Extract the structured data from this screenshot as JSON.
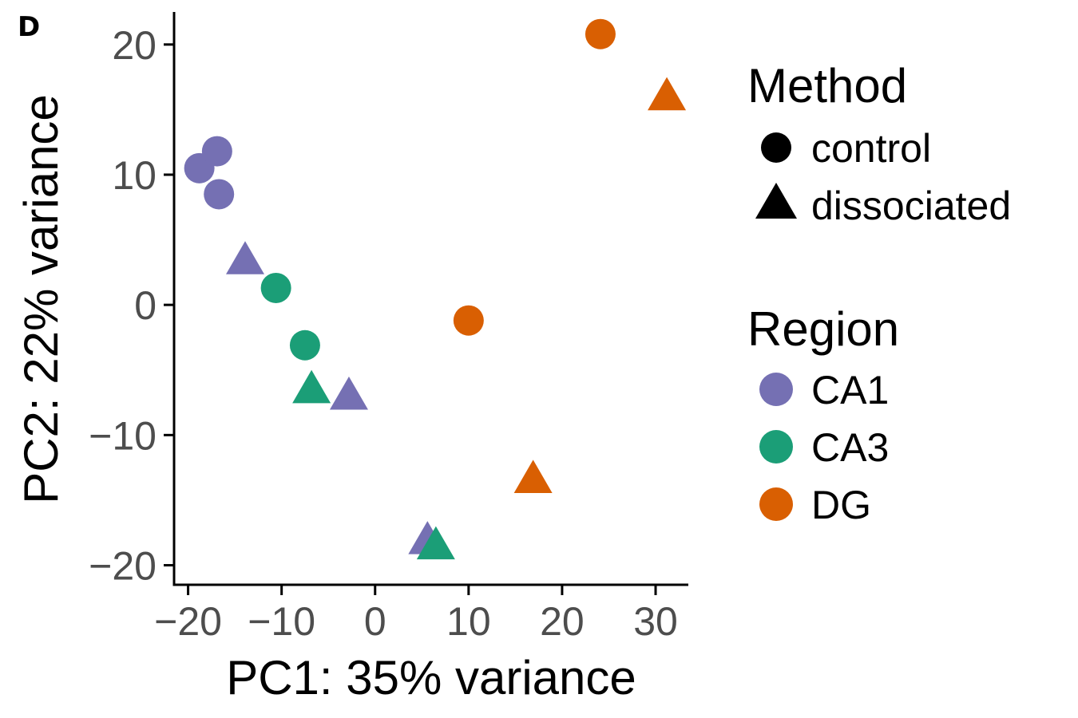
{
  "panel_label": "D",
  "chart_data": {
    "type": "scatter",
    "xlabel": "PC1: 35% variance",
    "ylabel": "PC2: 22% variance",
    "xlim": [
      -21.5,
      33.5
    ],
    "ylim": [
      -21.5,
      22.5
    ],
    "xticks": [
      -20,
      -10,
      0,
      10,
      20,
      30
    ],
    "yticks": [
      -20,
      -10,
      0,
      10,
      20
    ],
    "xtick_labels": [
      "−20",
      "−10",
      "0",
      "10",
      "20",
      "30"
    ],
    "ytick_labels": [
      "−20",
      "−10",
      "0",
      "10",
      "20"
    ],
    "grid": false,
    "legend": {
      "placement": "right",
      "shape_title": "Method",
      "shape_items": [
        {
          "label": "control",
          "shape": "circle"
        },
        {
          "label": "dissociated",
          "shape": "triangle"
        }
      ],
      "color_title": "Region",
      "color_items": [
        {
          "label": "CA1",
          "color": "#7570b3"
        },
        {
          "label": "CA3",
          "color": "#1b9e77"
        },
        {
          "label": "DG",
          "color": "#d95f02"
        }
      ]
    },
    "points": [
      {
        "x": -18.8,
        "y": 10.5,
        "region": "CA1",
        "method": "control"
      },
      {
        "x": -16.9,
        "y": 11.8,
        "region": "CA1",
        "method": "control"
      },
      {
        "x": -16.7,
        "y": 8.5,
        "region": "CA1",
        "method": "control"
      },
      {
        "x": -13.9,
        "y": 3.2,
        "region": "CA1",
        "method": "dissociated"
      },
      {
        "x": -2.8,
        "y": -7.2,
        "region": "CA1",
        "method": "dissociated"
      },
      {
        "x": 5.6,
        "y": -18.3,
        "region": "CA1",
        "method": "dissociated"
      },
      {
        "x": -10.6,
        "y": 1.3,
        "region": "CA3",
        "method": "control"
      },
      {
        "x": -7.5,
        "y": -3.1,
        "region": "CA3",
        "method": "control"
      },
      {
        "x": -6.8,
        "y": -6.7,
        "region": "CA3",
        "method": "dissociated"
      },
      {
        "x": 6.5,
        "y": -18.7,
        "region": "CA3",
        "method": "dissociated"
      },
      {
        "x": 24.1,
        "y": 20.8,
        "region": "DG",
        "method": "control"
      },
      {
        "x": 10.0,
        "y": -1.2,
        "region": "DG",
        "method": "control"
      },
      {
        "x": 31.2,
        "y": 15.8,
        "region": "DG",
        "method": "dissociated"
      },
      {
        "x": 16.9,
        "y": -13.6,
        "region": "DG",
        "method": "dissociated"
      }
    ]
  }
}
